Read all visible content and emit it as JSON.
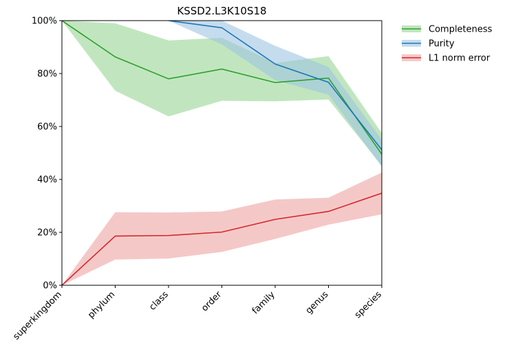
{
  "chart_data": {
    "type": "line",
    "title": "KSSD2.L3K10S18",
    "xlabel": "",
    "ylabel": "",
    "categories": [
      "superkingdom",
      "phylum",
      "class",
      "order",
      "family",
      "genus",
      "species"
    ],
    "ylim": [
      0,
      100
    ],
    "yticks": [
      0,
      20,
      40,
      60,
      80,
      100
    ],
    "ytick_labels": [
      "0%",
      "20%",
      "40%",
      "60%",
      "80%",
      "100%"
    ],
    "grid": false,
    "legend_position": "outside-top-right",
    "series": [
      {
        "name": "Completeness",
        "color": "#2ca02c",
        "band_color": "#98d594",
        "values": [
          100,
          86.3,
          78.0,
          81.7,
          76.6,
          78.3,
          49.5
        ],
        "lower": [
          100,
          73.5,
          63.8,
          69.7,
          69.5,
          70.2,
          45.2
        ],
        "upper": [
          100,
          99.0,
          92.5,
          93.5,
          84.0,
          86.6,
          57.5
        ]
      },
      {
        "name": "Purity",
        "color": "#1f77b4",
        "band_color": "#9ec4e3",
        "values": [
          null,
          null,
          100,
          97.3,
          83.6,
          76.7,
          51.2
        ],
        "lower": [
          null,
          null,
          100,
          91.0,
          77.5,
          72.0,
          44.8
        ],
        "upper": [
          null,
          null,
          100,
          100,
          90.5,
          82.5,
          55.0
        ]
      },
      {
        "name": "L1 norm error",
        "color": "#d62728",
        "band_color": "#eea3a4",
        "values": [
          0,
          18.6,
          18.8,
          20.1,
          24.9,
          27.9,
          34.8
        ],
        "lower": [
          0,
          9.7,
          10.1,
          12.6,
          17.5,
          22.9,
          26.8
        ],
        "upper": [
          0,
          27.6,
          27.5,
          27.9,
          32.4,
          33.1,
          42.6
        ]
      }
    ]
  }
}
